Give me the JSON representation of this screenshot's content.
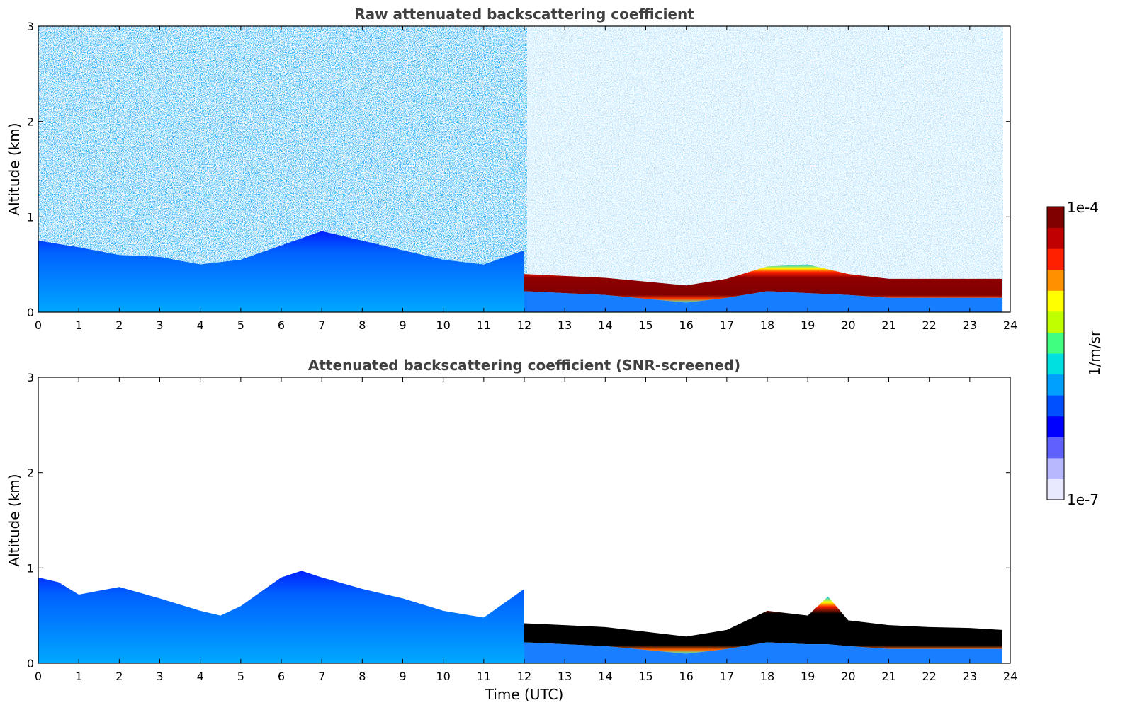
{
  "figure": {
    "colorbar": {
      "max_label": "1e-4",
      "min_label": "1e-7",
      "unit_label": "1/m/sr",
      "scale": "log",
      "range": [
        1e-07,
        0.0001
      ],
      "colors": [
        "#e8e8ff",
        "#b8b8ff",
        "#6060ff",
        "#0000ff",
        "#0050ff",
        "#00a0ff",
        "#00e0e0",
        "#40ff80",
        "#c0ff00",
        "#ffff00",
        "#ff9000",
        "#ff2000",
        "#c00000",
        "#800000"
      ]
    }
  },
  "chart_data": [
    {
      "type": "heatmap",
      "title": "Raw attenuated backscattering coefficient",
      "xlabel": "",
      "ylabel": "Altitude (km)",
      "xlim": [
        0,
        24
      ],
      "ylim": [
        0,
        3
      ],
      "xticks": [
        0,
        1,
        2,
        3,
        4,
        5,
        6,
        7,
        8,
        9,
        10,
        11,
        12,
        13,
        14,
        15,
        16,
        17,
        18,
        19,
        20,
        21,
        22,
        23,
        24
      ],
      "yticks": [
        0,
        1,
        2,
        3
      ],
      "grid": false,
      "boundary_layer_top_km": {
        "x": [
          0,
          1,
          2,
          3,
          4,
          5,
          6,
          7,
          8,
          9,
          10,
          11,
          12
        ],
        "y": [
          0.75,
          0.68,
          0.6,
          0.58,
          0.5,
          0.55,
          0.7,
          0.85,
          0.75,
          0.65,
          0.55,
          0.5,
          0.65
        ]
      },
      "cloud_layer_km": {
        "x": [
          12,
          13,
          14,
          15,
          16,
          17,
          18,
          19,
          20,
          21,
          22,
          23,
          23.8
        ],
        "top": [
          0.4,
          0.38,
          0.36,
          0.32,
          0.28,
          0.35,
          0.48,
          0.5,
          0.4,
          0.35,
          0.35,
          0.35,
          0.35
        ],
        "base": [
          0.22,
          0.2,
          0.18,
          0.14,
          0.1,
          0.15,
          0.22,
          0.2,
          0.18,
          0.15,
          0.15,
          0.15,
          0.15
        ]
      },
      "noise_region": "raw signal noise extends to 3 km"
    },
    {
      "type": "heatmap",
      "title": "Attenuated backscattering coefficient (SNR-screened)",
      "xlabel": "Time (UTC)",
      "ylabel": "Altitude (km)",
      "xlim": [
        0,
        24
      ],
      "ylim": [
        0,
        3
      ],
      "xticks": [
        0,
        1,
        2,
        3,
        4,
        5,
        6,
        7,
        8,
        9,
        10,
        11,
        12,
        13,
        14,
        15,
        16,
        17,
        18,
        19,
        20,
        21,
        22,
        23,
        24
      ],
      "yticks": [
        0,
        1,
        2,
        3
      ],
      "grid": false,
      "boundary_layer_top_km": {
        "x": [
          0,
          0.5,
          1,
          2,
          3,
          4,
          4.5,
          5,
          6,
          6.5,
          7,
          8,
          9,
          10,
          11,
          12
        ],
        "y": [
          0.9,
          0.85,
          0.72,
          0.8,
          0.68,
          0.55,
          0.5,
          0.6,
          0.9,
          0.97,
          0.9,
          0.78,
          0.68,
          0.55,
          0.48,
          0.78
        ]
      },
      "cloud_layer_km": {
        "x": [
          12,
          13,
          14,
          15,
          16,
          17,
          18,
          19,
          19.5,
          20,
          21,
          22,
          23,
          23.8
        ],
        "top": [
          0.42,
          0.4,
          0.38,
          0.33,
          0.28,
          0.35,
          0.55,
          0.5,
          0.7,
          0.45,
          0.4,
          0.38,
          0.37,
          0.35
        ],
        "base": [
          0.22,
          0.2,
          0.18,
          0.14,
          0.1,
          0.15,
          0.22,
          0.2,
          0.2,
          0.18,
          0.15,
          0.15,
          0.15,
          0.15
        ]
      }
    }
  ]
}
